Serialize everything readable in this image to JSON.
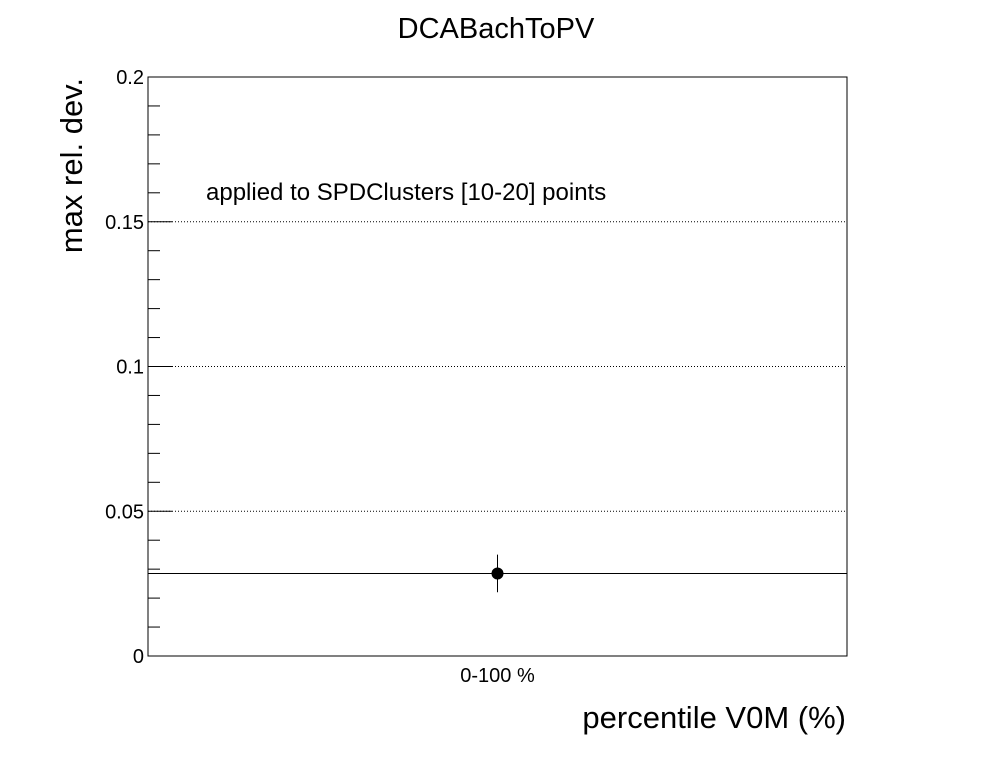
{
  "chart_data": {
    "type": "scatter",
    "title": "DCABachToPV",
    "xlabel": "percentile V0M (%)",
    "ylabel": "max rel. dev.",
    "categories": [
      "0-100 %"
    ],
    "ylim": [
      0,
      0.2
    ],
    "yticks": [
      {
        "value": 0,
        "label": "0"
      },
      {
        "value": 0.05,
        "label": "0.05"
      },
      {
        "value": 0.1,
        "label": "0.1"
      },
      {
        "value": 0.15,
        "label": "0.15"
      },
      {
        "value": 0.2,
        "label": "0.2"
      }
    ],
    "grid_y": true,
    "series": [
      {
        "values": [
          0.0285
        ],
        "errors": [
          0.0065
        ]
      }
    ],
    "reference_line": 0.0285,
    "annotation": "applied to SPDClusters [10-20] points"
  }
}
